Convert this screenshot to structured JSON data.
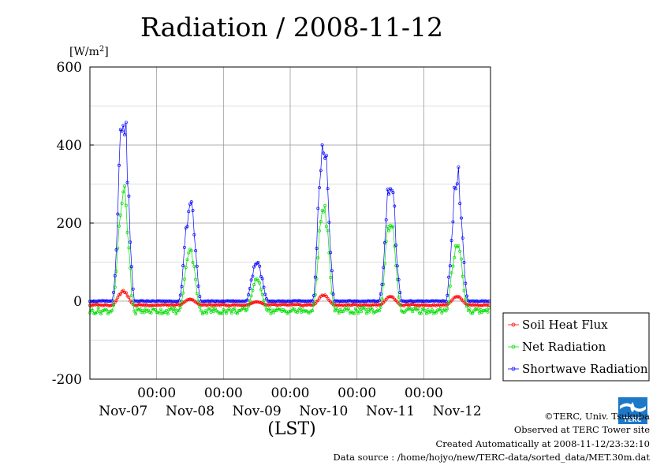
{
  "chart_data": {
    "type": "line",
    "title": "Radiation / 2008-11-12",
    "ylabel_unit": "[W/m",
    "ylabel_unit_sup": "2",
    "ylabel_unit_close": "]",
    "xlabel": "(LST)",
    "ylim": [
      -200,
      600
    ],
    "yticks": [
      -200,
      0,
      200,
      400,
      600
    ],
    "xlim": [
      0,
      6
    ],
    "xticks": [
      {
        "pos": 1,
        "time": "00:00"
      },
      {
        "pos": 2,
        "time": "00:00"
      },
      {
        "pos": 3,
        "time": "00:00"
      },
      {
        "pos": 4,
        "time": "00:00"
      },
      {
        "pos": 5,
        "time": "00:00"
      }
    ],
    "day_labels": [
      {
        "pos": 0.5,
        "label": "Nov-07"
      },
      {
        "pos": 1.5,
        "label": "Nov-08"
      },
      {
        "pos": 2.5,
        "label": "Nov-09"
      },
      {
        "pos": 3.5,
        "label": "Nov-10"
      },
      {
        "pos": 4.5,
        "label": "Nov-11"
      },
      {
        "pos": 5.5,
        "label": "Nov-12"
      }
    ],
    "grid": true,
    "legend_position": "right",
    "series": [
      {
        "name": "Soil Heat Flux",
        "color": "#ff0000",
        "peaks": [
          25,
          5,
          -2,
          15,
          12,
          12
        ],
        "night": -10
      },
      {
        "name": "Net Radiation",
        "color": "#00dd00",
        "peaks": [
          285,
          125,
          55,
          245,
          205,
          150
        ],
        "night": -25
      },
      {
        "name": "Shortwave Radiation",
        "color": "#0000ff",
        "peaks": [
          482,
          248,
          100,
          405,
          310,
          325
        ],
        "night": 0
      }
    ]
  },
  "logo": {
    "text": "TERC"
  },
  "footer": {
    "line1": "©TERC, Univ. Tsukuba",
    "line2": "Observed at TERC Tower site",
    "line3": "Created Automatically at 2008-11-12/23:32:10",
    "line4": "Data source : /home/hojyo/new/TERC-data/sorted_data/MET.30m.dat"
  }
}
